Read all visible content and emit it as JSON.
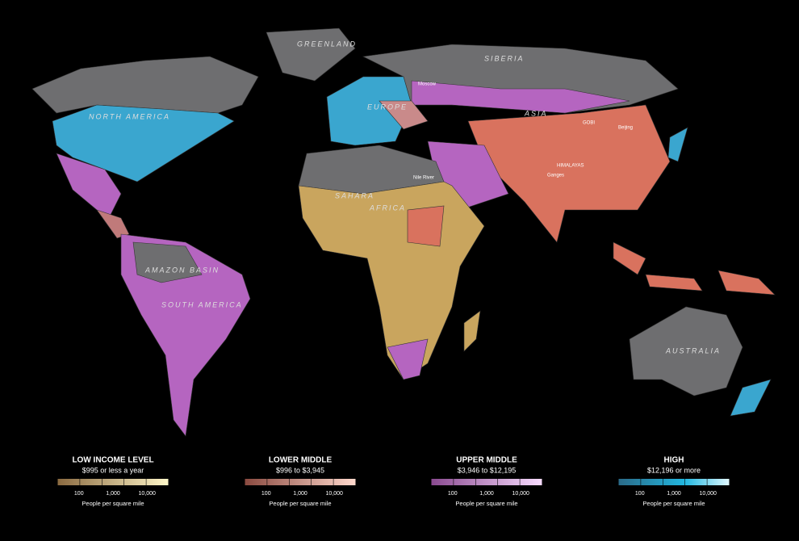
{
  "labels": {
    "greenland": "GREENLAND",
    "siberia": "SIBERIA",
    "north_america": "NORTH AMERICA",
    "europe": "EUROPE",
    "asia": "ASIA",
    "gobi": "GOBI",
    "moscow": "Moscow",
    "beijing": "Beijing",
    "himalayas": "HIMALAYAS",
    "ganges": "Ganges",
    "nile": "Nile River",
    "sahara": "SAHARA",
    "africa": "AFRICA",
    "amazon": "AMAZON BASIN",
    "south_america": "SOUTH AMERICA",
    "australia": "AUSTRALIA"
  },
  "legend": [
    {
      "title": "LOW INCOME LEVEL",
      "subtitle": "$995 or less a year",
      "ticks": [
        "100",
        "1,000",
        "10,000"
      ],
      "caption": "People per square mile"
    },
    {
      "title": "LOWER MIDDLE",
      "subtitle": "$996 to $3,945",
      "ticks": [
        "100",
        "1,000",
        "10,000"
      ],
      "caption": "People per square mile"
    },
    {
      "title": "UPPER MIDDLE",
      "subtitle": "$3,946 to $12,195",
      "ticks": [
        "100",
        "1,000",
        "10,000"
      ],
      "caption": "People per square mile"
    },
    {
      "title": "HIGH",
      "subtitle": "$12,196 or more",
      "ticks": [
        "100",
        "1,000",
        "10,000"
      ],
      "caption": "People per square mile"
    }
  ]
}
